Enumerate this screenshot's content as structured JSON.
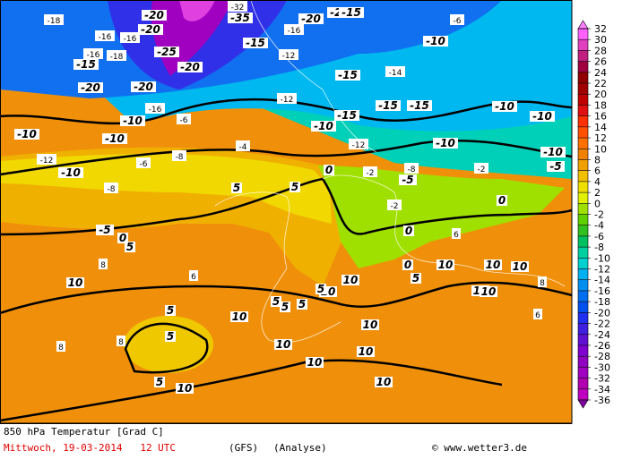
{
  "map": {
    "contour_labels": [
      -18,
      -20,
      -20,
      -16,
      -16,
      -16,
      -18,
      -15,
      -25,
      -20,
      -20,
      -20,
      -16,
      -6,
      -10,
      -10,
      -10,
      -12,
      -10,
      -8,
      -6,
      -4,
      -8,
      -32,
      -35,
      -15,
      -16,
      -12,
      -20,
      -20,
      -15,
      -12,
      -10,
      -15,
      -15,
      -15,
      -15,
      -12,
      -10,
      -10,
      -6,
      -10,
      -10,
      -10,
      -5,
      -14,
      0,
      -2,
      -8,
      -5,
      -2,
      -2,
      0,
      5,
      5,
      -5,
      0,
      5,
      0,
      10,
      6,
      10,
      10,
      10,
      5,
      5,
      5,
      10,
      5,
      5,
      5,
      10,
      10,
      10,
      10,
      10,
      10,
      10,
      10,
      10,
      0,
      5,
      5,
      10,
      8,
      8,
      8,
      6,
      6,
      8
    ]
  },
  "colorbar": {
    "levels": [
      32,
      30,
      28,
      26,
      24,
      22,
      20,
      18,
      16,
      14,
      12,
      10,
      8,
      6,
      4,
      2,
      0,
      -2,
      -4,
      -6,
      -8,
      -10,
      -12,
      -14,
      -16,
      -18,
      -20,
      -22,
      -24,
      -26,
      -28,
      -30,
      -32,
      -34,
      -36
    ],
    "colors": [
      "#ff60ff",
      "#e040c0",
      "#c02080",
      "#a00040",
      "#900000",
      "#a00000",
      "#c00000",
      "#e01010",
      "#ff3000",
      "#ff5000",
      "#ff7000",
      "#f08000",
      "#f0a000",
      "#f0c000",
      "#f0e000",
      "#e0f000",
      "#a0e000",
      "#60d000",
      "#30c020",
      "#00c060",
      "#00d0a0",
      "#00d0d0",
      "#00b0f0",
      "#0090f0",
      "#0070f0",
      "#0050f0",
      "#2030f0",
      "#4020e0",
      "#6010d0",
      "#8000d0",
      "#9000c0",
      "#a000c0",
      "#b000b0",
      "#c000c0"
    ],
    "arrow_colors": [
      "#ff80ff",
      "#8000a0"
    ]
  },
  "footer": {
    "title": "850 hPa Temperatur [Grad C]",
    "date": "Mittwoch, 19-03-2014   12 UTC",
    "model": "(GFS)",
    "run": "(Analyse)",
    "credit": "© www.wetter3.de"
  }
}
